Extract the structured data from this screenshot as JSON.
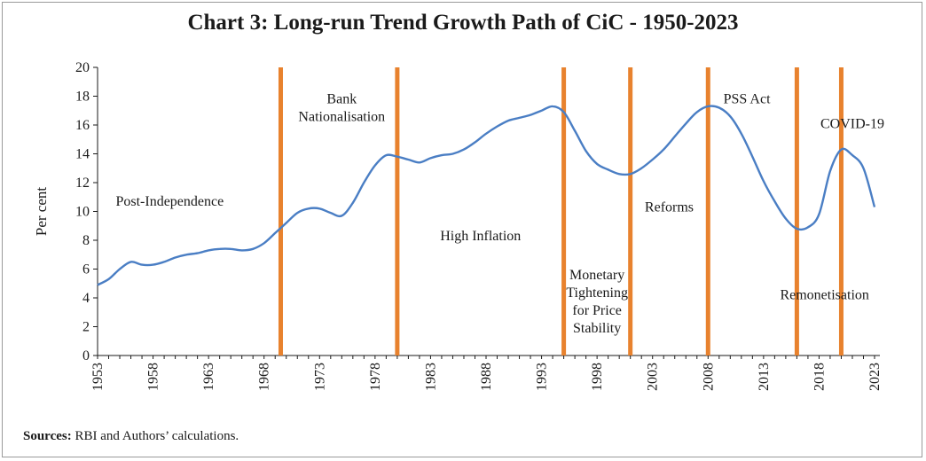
{
  "chart_data": {
    "type": "line",
    "title": "Chart 3: Long-run Trend Growth Path of CiC - 1950-2023",
    "xlabel": "",
    "ylabel": "Per cent",
    "ylim": [
      0,
      20
    ],
    "yticks": [
      0,
      2,
      4,
      6,
      8,
      10,
      12,
      14,
      16,
      18,
      20
    ],
    "xlim": [
      1953,
      2023
    ],
    "xticks": [
      1953,
      1958,
      1963,
      1968,
      1973,
      1978,
      1983,
      1988,
      1993,
      1998,
      2003,
      2008,
      2013,
      2018,
      2023
    ],
    "grid": false,
    "series": [
      {
        "name": "",
        "color": "#4a7ec4",
        "x": [
          1953,
          1954,
          1955,
          1956,
          1957,
          1958,
          1959,
          1960,
          1961,
          1962,
          1963,
          1964,
          1965,
          1966,
          1967,
          1968,
          1969,
          1970,
          1971,
          1972,
          1973,
          1974,
          1975,
          1976,
          1977,
          1978,
          1979,
          1980,
          1981,
          1982,
          1983,
          1984,
          1985,
          1986,
          1987,
          1988,
          1989,
          1990,
          1991,
          1992,
          1993,
          1994,
          1995,
          1996,
          1997,
          1998,
          1999,
          2000,
          2001,
          2002,
          2003,
          2004,
          2005,
          2006,
          2007,
          2008,
          2009,
          2010,
          2011,
          2012,
          2013,
          2014,
          2015,
          2016,
          2017,
          2018,
          2019,
          2020,
          2021,
          2022,
          2023
        ],
        "y": [
          4.9,
          5.3,
          6.0,
          6.5,
          6.3,
          6.3,
          6.5,
          6.8,
          7.0,
          7.1,
          7.3,
          7.4,
          7.4,
          7.3,
          7.4,
          7.8,
          8.5,
          9.2,
          9.9,
          10.2,
          10.2,
          9.9,
          9.7,
          10.6,
          12.0,
          13.2,
          13.9,
          13.8,
          13.6,
          13.4,
          13.7,
          13.9,
          14.0,
          14.3,
          14.8,
          15.4,
          15.9,
          16.3,
          16.5,
          16.7,
          17.0,
          17.3,
          16.9,
          15.6,
          14.2,
          13.3,
          12.9,
          12.6,
          12.6,
          13.0,
          13.6,
          14.3,
          15.2,
          16.1,
          16.9,
          17.3,
          17.2,
          16.6,
          15.4,
          13.8,
          12.1,
          10.7,
          9.5,
          8.8,
          8.9,
          9.8,
          12.8,
          14.3,
          13.9,
          13.0,
          10.3
        ]
      }
    ],
    "event_lines": {
      "color": "#e8822e",
      "years": [
        1969.5,
        1980,
        1995,
        2001,
        2008,
        2016,
        2020
      ]
    },
    "annotations": [
      {
        "lines": [
          "Post-Independence"
        ],
        "x": 1959.5,
        "y": 10.4
      },
      {
        "lines": [
          "Bank",
          "Nationalisation"
        ],
        "x": 1975,
        "y": 17.5
      },
      {
        "lines": [
          "High Inflation"
        ],
        "x": 1987.5,
        "y": 8.0
      },
      {
        "lines": [
          "Monetary",
          "Tightening",
          "for Price",
          "Stability"
        ],
        "x": 1998,
        "y": 5.3
      },
      {
        "lines": [
          "Reforms"
        ],
        "x": 2004.5,
        "y": 10.0
      },
      {
        "lines": [
          "PSS Act"
        ],
        "x": 2011.5,
        "y": 17.5
      },
      {
        "lines": [
          "COVID-19"
        ],
        "x": 2021,
        "y": 15.8
      },
      {
        "lines": [
          "Remonetisation"
        ],
        "x": 2018.5,
        "y": 3.9
      }
    ]
  },
  "footer": {
    "source_label": "Sources:",
    "source_text": " RBI and Authors’ calculations."
  }
}
